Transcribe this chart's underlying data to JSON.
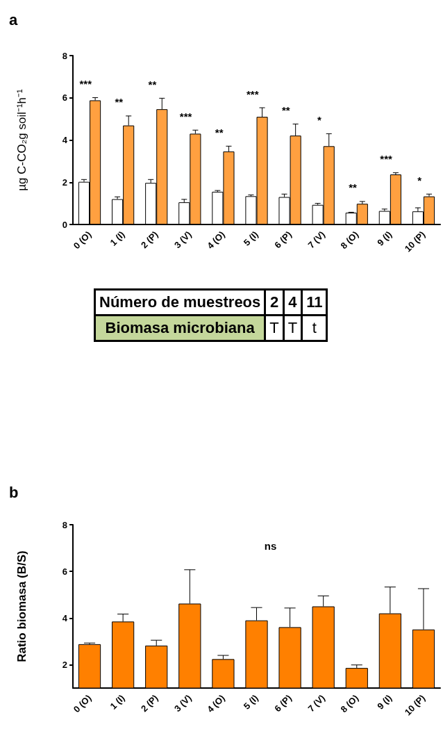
{
  "chart_data": [
    {
      "type": "bar",
      "title": "a",
      "ylabel": "µg C-CO₂g soil⁻¹h⁻¹",
      "categories": [
        "0 (O)",
        "1 (I)",
        "2 (P)",
        "3 (V)",
        "4 (O)",
        "5 (I)",
        "6 (P)",
        "7 (V)",
        "8 (O)",
        "9 (I)",
        "10 (P)"
      ],
      "series": [
        {
          "color": "#ffffff",
          "values": [
            2.02,
            1.2,
            1.97,
            1.05,
            1.55,
            1.34,
            1.3,
            0.93,
            0.56,
            0.64,
            0.62
          ],
          "errors": [
            0.11,
            0.11,
            0.16,
            0.14,
            0.06,
            0.06,
            0.14,
            0.07,
            0.02,
            0.09,
            0.17
          ]
        },
        {
          "color": "#ffa040",
          "values": [
            5.88,
            4.69,
            5.46,
            4.3,
            3.46,
            5.1,
            4.21,
            3.71,
            0.98,
            2.37,
            1.33
          ],
          "errors": [
            0.13,
            0.45,
            0.52,
            0.17,
            0.25,
            0.43,
            0.55,
            0.59,
            0.11,
            0.08,
            0.11
          ]
        }
      ],
      "ylim": [
        0,
        8
      ],
      "yticks": [
        0,
        2,
        4,
        6,
        8
      ],
      "grid": false,
      "annotations": [
        "***",
        "**",
        "**",
        "***",
        "**",
        "***",
        "**",
        "*",
        "**",
        "***",
        "*"
      ]
    },
    {
      "type": "other",
      "annotations": [
        "Número de muestreos",
        "2",
        "4",
        "11",
        "Biomasa microbiana",
        "T",
        "T",
        "t"
      ]
    },
    {
      "type": "bar",
      "title": "b",
      "ylabel": "Ratio biomasa (B/S)",
      "categories": [
        "0 (O)",
        "1 (I)",
        "2 (P)",
        "3 (V)",
        "4 (O)",
        "5 (I)",
        "6 (P)",
        "7 (V)",
        "8 (O)",
        "9 (I)",
        "10 (P)"
      ],
      "series": [
        {
          "color": "#ff8000",
          "values": [
            2.88,
            3.85,
            2.82,
            4.62,
            2.24,
            3.9,
            3.61,
            4.5,
            1.86,
            4.2,
            3.51
          ],
          "errors": [
            0.05,
            0.32,
            0.23,
            1.45,
            0.16,
            0.55,
            0.82,
            0.45,
            0.13,
            1.13,
            1.75
          ]
        }
      ],
      "ylim": [
        1,
        8
      ],
      "yticks": [
        2,
        4,
        6,
        8
      ],
      "grid": false,
      "annotations": [
        "ns"
      ]
    }
  ]
}
